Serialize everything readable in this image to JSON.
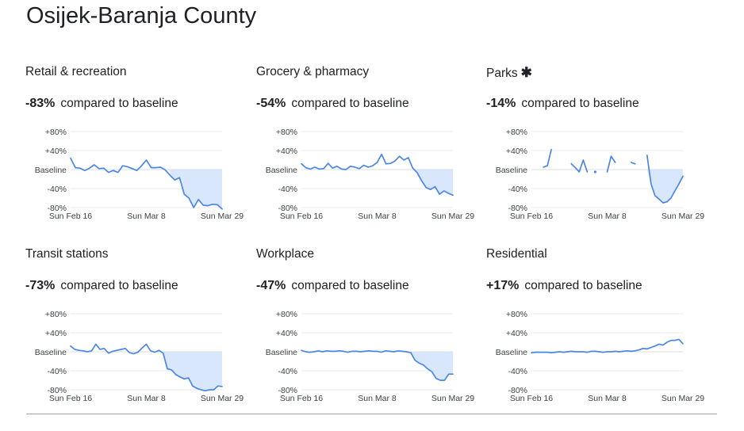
{
  "page": {
    "title": "Osijek-Baranja County",
    "compare_text": "compared to baseline"
  },
  "chart_data": [
    {
      "type": "line",
      "title": "Retail & recreation",
      "headline": "-83%",
      "has_asterisk": false,
      "x_ticks": [
        "Sun Feb 16",
        "Sun Mar 8",
        "Sun Mar 29"
      ],
      "y_ticks": [
        "+80%",
        "+40%",
        "Baseline",
        "-40%",
        "-80%"
      ],
      "ylim": [
        -80,
        80
      ],
      "shade_from_index": 21,
      "series": [
        {
          "values": [
            24,
            4,
            3,
            -2,
            3,
            10,
            2,
            3,
            -6,
            -2,
            -6,
            8,
            6,
            2,
            -2,
            8,
            20,
            4,
            4,
            5,
            -1,
            -12,
            -22,
            -17,
            -52,
            -60,
            -80,
            -63,
            -75,
            -76,
            -73,
            -74,
            -83
          ]
        }
      ]
    },
    {
      "type": "line",
      "title": "Grocery & pharmacy",
      "headline": "-54%",
      "has_asterisk": false,
      "x_ticks": [
        "Sun Feb 16",
        "Sun Mar 8",
        "Sun Mar 29"
      ],
      "y_ticks": [
        "+80%",
        "+40%",
        "Baseline",
        "-40%",
        "-80%"
      ],
      "ylim": [
        -80,
        80
      ],
      "shade_from_index": 23,
      "series": [
        {
          "values": [
            12,
            4,
            1,
            5,
            1,
            2,
            13,
            3,
            7,
            1,
            0,
            7,
            5,
            2,
            9,
            5,
            8,
            15,
            32,
            12,
            13,
            18,
            28,
            20,
            25,
            3,
            -7,
            -24,
            -38,
            -42,
            -36,
            -52,
            -45,
            -50,
            -54
          ]
        }
      ]
    },
    {
      "type": "line",
      "title": "Parks",
      "headline": "-14%",
      "has_asterisk": true,
      "x_ticks": [
        "Sun Feb 16",
        "Sun Mar 8",
        "Sun Mar 29"
      ],
      "y_ticks": [
        "+80%",
        "+40%",
        "Baseline",
        "-40%",
        "-80%"
      ],
      "ylim": [
        -80,
        80
      ],
      "shade_from_index": 27,
      "series": [
        {
          "values": [
            null,
            null,
            null,
            5,
            8,
            42,
            null,
            null,
            null,
            null,
            12,
            4,
            -5,
            20,
            -5,
            null,
            -5,
            null,
            null,
            -5,
            28,
            15,
            null,
            null,
            null,
            15,
            12,
            null,
            null,
            30,
            -30,
            -55,
            -62,
            -70,
            -68,
            -60,
            -45,
            -30,
            -14
          ]
        }
      ]
    },
    {
      "type": "line",
      "title": "Transit stations",
      "headline": "-73%",
      "has_asterisk": false,
      "x_ticks": [
        "Sun Feb 16",
        "Sun Mar 8",
        "Sun Mar 29"
      ],
      "y_ticks": [
        "+80%",
        "+40%",
        "Baseline",
        "-40%",
        "-80%"
      ],
      "ylim": [
        -80,
        80
      ],
      "shade_from_index": 21,
      "series": [
        {
          "values": [
            12,
            5,
            3,
            2,
            0,
            2,
            16,
            5,
            7,
            -3,
            1,
            3,
            5,
            7,
            -2,
            -4,
            -1,
            8,
            16,
            2,
            -1,
            3,
            -3,
            -36,
            -38,
            -48,
            -53,
            -57,
            -55,
            -72,
            -77,
            -80,
            -82,
            -80,
            -80,
            -72,
            -73
          ]
        }
      ]
    },
    {
      "type": "line",
      "title": "Workplace",
      "headline": "-47%",
      "has_asterisk": false,
      "x_ticks": [
        "Sun Feb 16",
        "Sun Mar 8",
        "Sun Mar 29"
      ],
      "y_ticks": [
        "+80%",
        "+40%",
        "Baseline",
        "-40%",
        "-80%"
      ],
      "ylim": [
        -80,
        80
      ],
      "shade_from_index": 25,
      "series": [
        {
          "values": [
            3,
            0,
            -1,
            0,
            2,
            0,
            2,
            1,
            1,
            2,
            1,
            -1,
            1,
            1,
            0,
            1,
            2,
            1,
            1,
            -1,
            2,
            1,
            0,
            2,
            1,
            0,
            -2,
            -18,
            -24,
            -28,
            -36,
            -42,
            -56,
            -60,
            -60,
            -47,
            -47
          ]
        }
      ]
    },
    {
      "type": "line",
      "title": "Residential",
      "headline": "+17%",
      "has_asterisk": false,
      "x_ticks": [
        "Sun Feb 16",
        "Sun Mar 8",
        "Sun Mar 29"
      ],
      "y_ticks": [
        "+80%",
        "+40%",
        "Baseline",
        "-40%",
        "-80%"
      ],
      "ylim": [
        -80,
        80
      ],
      "shade_from_index": 21,
      "series": [
        {
          "values": [
            -2,
            -1,
            -1,
            -1,
            -1,
            -2,
            -1,
            0,
            -1,
            0,
            1,
            0,
            0,
            0,
            -1,
            1,
            1,
            0,
            -1,
            0,
            0,
            1,
            0,
            1,
            2,
            1,
            2,
            4,
            7,
            6,
            9,
            12,
            16,
            14,
            20,
            24,
            24,
            26,
            17
          ]
        }
      ]
    }
  ]
}
